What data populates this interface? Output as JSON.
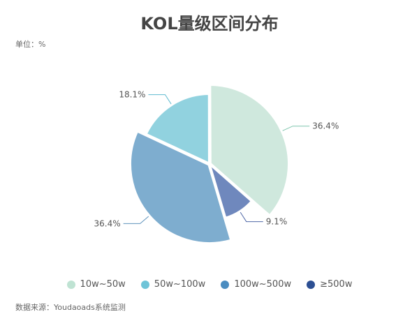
{
  "header": {
    "title": "KOL量级区间分布",
    "unit": "单位：%"
  },
  "footer": {
    "source": "数据来源：Youdaoads系统监测"
  },
  "chart_data": {
    "type": "pie",
    "title": "KOL量级区间分布",
    "unit": "%",
    "slices": [
      {
        "label": "10w~50w",
        "value": 36.4,
        "value_label": "36.4%",
        "color": "#cfe8dd",
        "label_color": "#7fc6ad"
      },
      {
        "label": "100w~500w",
        "value": 9.1,
        "value_label": "9.1%",
        "color": "#6f88bd",
        "label_color": "#4f67a6"
      },
      {
        "label": "",
        "value": 36.4,
        "value_label": "36.4%",
        "color": "#7eadcf",
        "label_color": "#5f93bd"
      },
      {
        "label": "50w~100w",
        "value": 18.1,
        "value_label": "18.1%",
        "color": "#91d2df",
        "label_color": "#5fbbd0"
      }
    ],
    "legend": [
      {
        "label": "10w~50w",
        "color": "#bfe3d3"
      },
      {
        "label": "50w~100w",
        "color": "#6ec4d8"
      },
      {
        "label": "100w~500w",
        "color": "#4a8cc0"
      },
      {
        "label": "≥500w",
        "color": "#2c4f93"
      }
    ],
    "legend_position": "bottom"
  }
}
